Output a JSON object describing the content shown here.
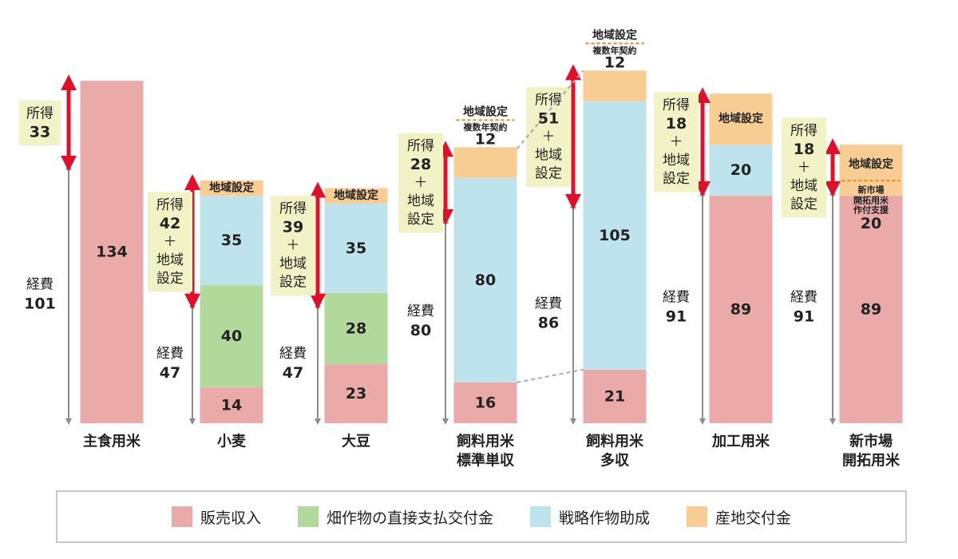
{
  "chart_data": {
    "type": "bar",
    "stacked": true,
    "title": "",
    "xlabel": "",
    "ylabel": "",
    "grid": false,
    "legend_placement": "bottom",
    "colors": {
      "sales": "#eaaaaa",
      "upland": "#b3d89c",
      "strategic": "#bfe3ec",
      "regional": "#f8cd94",
      "arrow_red": "#e0102a",
      "arrow_gray": "#8c8c8c",
      "label_bg": "#f1f3c7"
    },
    "legend": [
      {
        "key": "sales",
        "label": "販売収入"
      },
      {
        "key": "upland",
        "label": "畑作物の直接支払交付金"
      },
      {
        "key": "strategic",
        "label": "戦略作物助成"
      },
      {
        "key": "regional",
        "label": "産地交付金"
      }
    ],
    "categories": [
      {
        "lines": [
          "主食用米"
        ],
        "segments": [
          {
            "type": "sales",
            "value": 134,
            "label": "134"
          }
        ],
        "expense": {
          "label": "経費",
          "value": 101
        },
        "income": {
          "label": "所得",
          "value": "33",
          "extra": []
        }
      },
      {
        "lines": [
          "小麦"
        ],
        "segments": [
          {
            "type": "sales",
            "value": 14,
            "label": "14"
          },
          {
            "type": "upland",
            "value": 40,
            "label": "40"
          },
          {
            "type": "strategic",
            "value": 35,
            "label": "35"
          },
          {
            "type": "regional",
            "value": 6,
            "label": "",
            "note": [
              "地域設定"
            ]
          }
        ],
        "expense": {
          "label": "経費",
          "value": 47
        },
        "income": {
          "label": "所得",
          "value": "42",
          "extra": [
            "＋",
            "地域",
            "設定"
          ]
        }
      },
      {
        "lines": [
          "大豆"
        ],
        "segments": [
          {
            "type": "sales",
            "value": 23,
            "label": "23"
          },
          {
            "type": "upland",
            "value": 28,
            "label": "28"
          },
          {
            "type": "strategic",
            "value": 35,
            "label": "35"
          },
          {
            "type": "regional",
            "value": 6,
            "label": "",
            "note": [
              "地域設定"
            ]
          }
        ],
        "expense": {
          "label": "経費",
          "value": 47
        },
        "income": {
          "label": "所得",
          "value": "39",
          "extra": [
            "＋",
            "地域",
            "設定"
          ]
        }
      },
      {
        "lines": [
          "飼料用米",
          "標準単収"
        ],
        "segments": [
          {
            "type": "sales",
            "value": 16,
            "label": "16"
          },
          {
            "type": "strategic",
            "value": 80,
            "label": "80"
          },
          {
            "type": "regional",
            "value": 12,
            "label": "12",
            "note": [
              "地域設定",
              "複数年契約"
            ]
          }
        ],
        "expense": {
          "label": "経費",
          "value": 80
        },
        "income": {
          "label": "所得",
          "value": "28",
          "extra": [
            "＋",
            "地域",
            "設定"
          ]
        }
      },
      {
        "lines": [
          "飼料用米",
          "多収"
        ],
        "segments": [
          {
            "type": "sales",
            "value": 21,
            "label": "21"
          },
          {
            "type": "strategic",
            "value": 105,
            "label": "105"
          },
          {
            "type": "regional",
            "value": 12,
            "label": "12",
            "note": [
              "地域設定",
              "複数年契約"
            ]
          }
        ],
        "expense": {
          "label": "経費",
          "value": 86
        },
        "income": {
          "label": "所得",
          "value": "51",
          "extra": [
            "＋",
            "地域",
            "設定"
          ]
        }
      },
      {
        "lines": [
          "加工用米"
        ],
        "segments": [
          {
            "type": "sales",
            "value": 89,
            "label": "89"
          },
          {
            "type": "strategic",
            "value": 20,
            "label": "20"
          },
          {
            "type": "regional",
            "value": 20,
            "label": "",
            "note": [
              "地域設定"
            ]
          }
        ],
        "expense": {
          "label": "経費",
          "value": 91
        },
        "income": {
          "label": "所得",
          "value": "18",
          "extra": [
            "＋",
            "地域",
            "設定"
          ]
        }
      },
      {
        "lines": [
          "新市場",
          "開拓用米"
        ],
        "segments": [
          {
            "type": "sales",
            "value": 89,
            "label": "89"
          },
          {
            "type": "regional",
            "value": 20,
            "label": "20",
            "note": [
              "地域設定",
              "新市場",
              "開拓用米",
              "作付支援"
            ]
          }
        ],
        "expense": {
          "label": "経費",
          "value": 91
        },
        "income": {
          "label": "所得",
          "value": "18",
          "extra": [
            "＋",
            "地域",
            "設定"
          ]
        }
      }
    ]
  }
}
